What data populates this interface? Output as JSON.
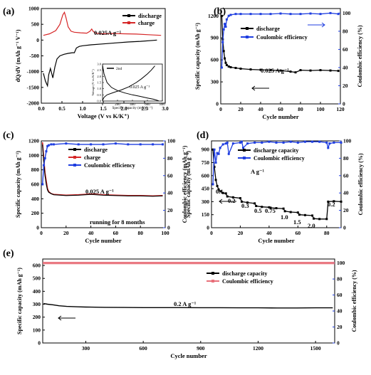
{
  "colors": {
    "black": "#000000",
    "red": "#d62728",
    "blue": "#1f3ee0",
    "pink": "#e8707a"
  },
  "chart_data": [
    {
      "panel": "(a)",
      "type": "line",
      "xlabel": "Voltage (V vs K/K⁺)",
      "ylabel": "dQ/dV (mAh g⁻¹ V⁻¹)",
      "xlim": [
        0,
        3.0
      ],
      "ylim": [
        -2000,
        1000
      ],
      "xticks": [
        "0.0",
        "0.5",
        "1.0",
        "1.5",
        "2.0",
        "2.5",
        "3.0"
      ],
      "yticks": [
        "1000",
        "500",
        "0",
        "-500",
        "-1000",
        "-1500",
        "-2000"
      ],
      "annotation": "0.025A g⁻¹",
      "legend": [
        "discharge",
        "charge"
      ],
      "series": [
        {
          "name": "discharge",
          "x": [
            0.05,
            0.1,
            0.15,
            0.18,
            0.22,
            0.28,
            0.33,
            0.38,
            0.45,
            0.55,
            0.65,
            0.75,
            0.8,
            0.85,
            0.92,
            1.0,
            1.2,
            1.5,
            1.8,
            2.1,
            2.4,
            2.7,
            2.8
          ],
          "y": [
            -1050,
            -1300,
            -1450,
            -1100,
            -900,
            -1200,
            -850,
            -600,
            -500,
            -450,
            -420,
            -400,
            -400,
            -250,
            -200,
            -180,
            -150,
            -120,
            -90,
            -60,
            -40,
            -10,
            0
          ]
        },
        {
          "name": "charge",
          "x": [
            0.05,
            0.2,
            0.35,
            0.45,
            0.52,
            0.56,
            0.6,
            0.65,
            0.72,
            0.8,
            0.95,
            1.1,
            1.18,
            1.22,
            1.26,
            1.32,
            1.45,
            1.7,
            2.0,
            2.3,
            2.6,
            2.9
          ],
          "y": [
            150,
            200,
            300,
            500,
            800,
            880,
            700,
            420,
            280,
            250,
            230,
            220,
            280,
            350,
            270,
            220,
            200,
            210,
            200,
            190,
            170,
            150
          ]
        }
      ],
      "inset": {
        "xlabel": "Specific capacity (mAh g⁻¹)",
        "ylabel": "Voltage (V vs K/K⁺)",
        "xlim": [
          0,
          800
        ],
        "ylim": [
          0,
          3.0
        ],
        "xticks": [
          "0",
          "200",
          "400",
          "600",
          "800"
        ],
        "yticks": [
          "0.0",
          "0.5",
          "1.0",
          "1.5",
          "2.0",
          "2.5",
          "3.0"
        ],
        "legend": "2nd",
        "annotation": "0.025 A g⁻¹",
        "series": [
          {
            "name": "discharge",
            "x": [
              0,
              20,
              60,
              120,
              200,
              300,
              400,
              500,
              600,
              680,
              720,
              750
            ],
            "y": [
              2.9,
              2.2,
              1.5,
              1.1,
              0.85,
              0.65,
              0.5,
              0.38,
              0.25,
              0.15,
              0.08,
              0.02
            ]
          },
          {
            "name": "charge",
            "x": [
              0,
              20,
              60,
              150,
              250,
              350,
              450,
              520,
              600,
              650,
              700
            ],
            "y": [
              0.05,
              0.3,
              0.5,
              0.7,
              0.9,
              1.15,
              1.5,
              1.8,
              2.2,
              2.5,
              2.85
            ]
          }
        ]
      }
    },
    {
      "panel": "(b)",
      "type": "line",
      "xlabel": "Cycle number",
      "ylabel": "Specific capacity (mAh g⁻¹)",
      "y2label": "Coulombic efficiency (%)",
      "xlim": [
        0,
        120
      ],
      "ylim": [
        0,
        1300
      ],
      "y2lim": [
        0,
        105
      ],
      "xticks": [
        "0",
        "20",
        "40",
        "60",
        "80",
        "100",
        "120"
      ],
      "yticks": [
        "0",
        "300",
        "600",
        "900",
        "1200"
      ],
      "y2ticks": [
        "0",
        "20",
        "40",
        "60",
        "80",
        "100"
      ],
      "annotation": "0.025 A g⁻¹",
      "legend": [
        "discharge",
        "Coulombic efficiency"
      ],
      "series": [
        {
          "name": "discharge",
          "x": [
            1,
            2,
            3,
            4,
            5,
            6,
            8,
            10,
            15,
            20,
            30,
            40,
            50,
            60,
            70,
            75,
            80,
            90,
            100,
            110,
            118
          ],
          "y": [
            1200,
            880,
            720,
            620,
            560,
            530,
            510,
            500,
            490,
            480,
            470,
            465,
            460,
            455,
            440,
            430,
            460,
            455,
            460,
            455,
            450
          ]
        },
        {
          "name": "Coulombic efficiency",
          "x": [
            1,
            2,
            3,
            4,
            5,
            6,
            8,
            10,
            15,
            20,
            30,
            40,
            50,
            60,
            70,
            80,
            90,
            100,
            110,
            118
          ],
          "y": [
            40,
            68,
            82,
            88,
            85,
            93,
            97,
            98,
            99,
            99,
            99,
            99,
            99,
            99.5,
            99,
            99,
            99.5,
            99,
            100,
            99
          ]
        }
      ]
    },
    {
      "panel": "(c)",
      "type": "line",
      "xlabel": "Cycle number",
      "ylabel": "Specific capacity (mAh g⁻¹)",
      "y2label": "Coulombic efficiency (mAh g⁻¹)",
      "xlim": [
        0,
        100
      ],
      "ylim": [
        0,
        1200
      ],
      "y2lim": [
        0,
        100
      ],
      "xticks": [
        "0",
        "20",
        "40",
        "60",
        "80",
        "100"
      ],
      "yticks": [
        "0",
        "200",
        "400",
        "600",
        "800",
        "1000",
        "1200"
      ],
      "y2ticks": [
        "0",
        "20",
        "40",
        "60",
        "80",
        "100"
      ],
      "annotation": "0.025 A g⁻¹",
      "annotation2": "running for 8 months",
      "legend": [
        "discharge",
        "charge",
        "Coulombic efficiency"
      ],
      "series": [
        {
          "name": "discharge",
          "x": [
            1,
            2,
            3,
            4,
            5,
            6,
            8,
            10,
            20,
            30,
            40,
            50,
            60,
            70,
            80,
            90,
            98
          ],
          "y": [
            1150,
            900,
            720,
            600,
            520,
            490,
            470,
            455,
            445,
            450,
            460,
            450,
            445,
            440,
            440,
            435,
            440
          ]
        },
        {
          "name": "charge",
          "x": [
            1,
            2,
            3,
            4,
            5,
            6,
            8,
            10,
            20,
            30,
            40,
            50,
            60,
            70,
            80,
            90,
            98
          ],
          "y": [
            1180,
            950,
            760,
            640,
            540,
            500,
            470,
            460,
            450,
            455,
            465,
            455,
            450,
            445,
            445,
            440,
            445
          ]
        },
        {
          "name": "Coulombic efficiency",
          "x": [
            1,
            2,
            3,
            4,
            5,
            6,
            8,
            10,
            20,
            30,
            40,
            50,
            60,
            70,
            80,
            90,
            98
          ],
          "y": [
            50,
            72,
            80,
            88,
            94,
            95,
            96,
            96,
            97,
            96,
            96,
            96,
            97,
            96,
            96,
            96,
            96
          ]
        }
      ]
    },
    {
      "panel": "(d)",
      "type": "line",
      "xlabel": "Cycle number",
      "ylabel": "Specific capacity (mAh g⁻¹)",
      "y2label": "Coulombic efficiency (%)",
      "xlim": [
        0,
        90
      ],
      "ylim": [
        0,
        1000
      ],
      "y2lim": [
        0,
        100
      ],
      "xticks": [
        "0",
        "20",
        "40",
        "60",
        "80"
      ],
      "yticks": [
        "0",
        "150",
        "300",
        "450",
        "600",
        "750",
        "900"
      ],
      "y2ticks": [
        "0",
        "20",
        "40",
        "60",
        "80",
        "100"
      ],
      "annotation": "A g⁻¹",
      "rate_labels": [
        "0.1",
        "0.2",
        "0.3",
        "0.5",
        "0.75",
        "1.0",
        "1.5",
        "2.0",
        "0.2"
      ],
      "legend": [
        "discharge capacity",
        "Coulombic efficiency"
      ],
      "series": [
        {
          "name": "discharge capacity",
          "x": [
            1,
            2,
            3,
            4,
            5,
            6,
            8,
            10,
            11,
            15,
            20,
            21,
            25,
            30,
            31,
            35,
            40,
            41,
            45,
            50,
            51,
            55,
            60,
            61,
            65,
            70,
            71,
            75,
            80,
            81,
            85,
            90
          ],
          "y": [
            900,
            700,
            550,
            480,
            440,
            420,
            400,
            395,
            360,
            350,
            340,
            300,
            290,
            280,
            250,
            240,
            235,
            230,
            225,
            220,
            190,
            180,
            175,
            150,
            145,
            140,
            105,
            100,
            100,
            300,
            305,
            300
          ]
        },
        {
          "name": "Coulombic efficiency",
          "x": [
            1,
            2,
            3,
            4,
            5,
            6,
            8,
            10,
            11,
            12,
            15,
            20,
            21,
            22,
            25,
            30,
            35,
            40,
            45,
            50,
            55,
            60,
            65,
            70,
            75,
            80,
            81,
            82,
            85,
            90
          ],
          "y": [
            50,
            90,
            75,
            86,
            85,
            92,
            96,
            97,
            98,
            85,
            97,
            98,
            99,
            92,
            97,
            98,
            98,
            99,
            98,
            98,
            99,
            98,
            99,
            99,
            99,
            98,
            92,
            97,
            98,
            98
          ]
        }
      ]
    },
    {
      "panel": "(e)",
      "type": "line",
      "xlabel": "Cycle number",
      "ylabel": "Specific capacity (mAh g⁻¹)",
      "y2label": "Coulombic efficiency (%)",
      "xlim": [
        75,
        1600
      ],
      "ylim": [
        0,
        650
      ],
      "y2lim": [
        0,
        105
      ],
      "xticks": [
        "300",
        "600",
        "900",
        "1200",
        "1500"
      ],
      "yticks": [
        "0",
        "100",
        "200",
        "300",
        "400",
        "500",
        "600"
      ],
      "y2ticks": [
        "0",
        "20",
        "40",
        "60",
        "80",
        "100"
      ],
      "annotation": "0.2 A g⁻¹",
      "legend": [
        "discharge capacity",
        "Coulombic efficiency"
      ],
      "series": [
        {
          "name": "discharge capacity",
          "x": [
            80,
            100,
            130,
            160,
            200,
            260,
            300,
            400,
            500,
            600,
            700,
            800,
            900,
            1000,
            1100,
            1200,
            1300,
            1400,
            1500,
            1590
          ],
          "y": [
            305,
            300,
            295,
            288,
            283,
            280,
            278,
            276,
            275,
            274,
            274,
            274,
            273,
            273,
            272,
            272,
            271,
            271,
            272,
            272
          ]
        },
        {
          "name": "Coulombic efficiency",
          "x": [
            80,
            200,
            400,
            600,
            800,
            1000,
            1200,
            1400,
            1590
          ],
          "y": [
            100,
            100,
            100,
            100,
            100,
            100,
            100,
            100,
            100
          ]
        }
      ]
    }
  ]
}
